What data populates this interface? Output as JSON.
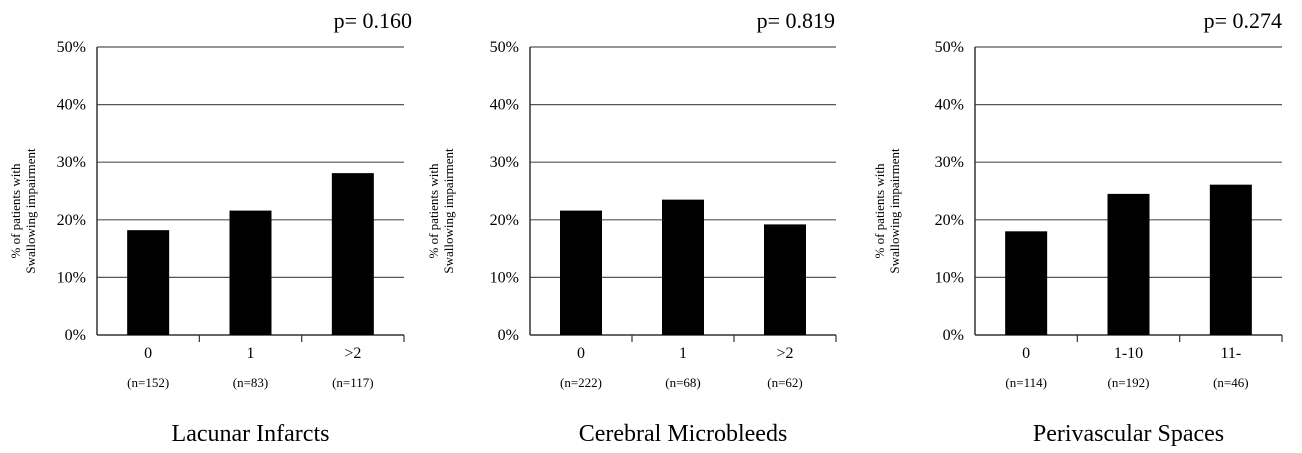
{
  "chart_data": [
    {
      "type": "bar",
      "title": "Lacunar Infarcts",
      "p_value": "p= 0.160",
      "ylabel": [
        "% of patients with",
        "Swallowing impairment"
      ],
      "categories": [
        "0",
        "1",
        ">2"
      ],
      "n_labels": [
        "(n=152)",
        "(n=83)",
        "(n=117)"
      ],
      "values": [
        18.2,
        21.6,
        28.1
      ],
      "ylim": [
        0,
        50
      ],
      "yticks": [
        "0%",
        "10%",
        "20%",
        "30%",
        "40%",
        "50%"
      ],
      "grid": true
    },
    {
      "type": "bar",
      "title": "Cerebral Microbleeds",
      "p_value": "p= 0.819",
      "ylabel": [
        "% of patients with",
        "Swallowing impairment"
      ],
      "categories": [
        "0",
        "1",
        ">2"
      ],
      "n_labels": [
        "(n=222)",
        "(n=68)",
        "(n=62)"
      ],
      "values": [
        21.6,
        23.5,
        19.2
      ],
      "ylim": [
        0,
        50
      ],
      "yticks": [
        "0%",
        "10%",
        "20%",
        "30%",
        "40%",
        "50%"
      ],
      "grid": true
    },
    {
      "type": "bar",
      "title": "Perivascular Spaces",
      "p_value": "p= 0.274",
      "ylabel": [
        "% of patients with",
        "Swallowing impairment"
      ],
      "categories": [
        "0",
        "1-10",
        "11-"
      ],
      "n_labels": [
        "(n=114)",
        "(n=192)",
        "(n=46)"
      ],
      "values": [
        18.0,
        24.5,
        26.1
      ],
      "ylim": [
        0,
        50
      ],
      "yticks": [
        "0%",
        "10%",
        "20%",
        "30%",
        "40%",
        "50%"
      ],
      "grid": true
    }
  ]
}
